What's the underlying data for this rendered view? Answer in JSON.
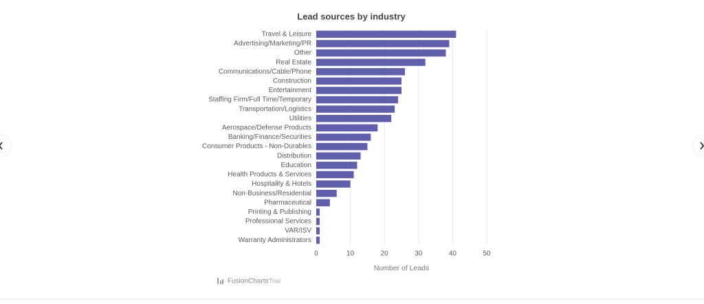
{
  "chart_data": {
    "type": "bar",
    "orientation": "horizontal",
    "title": "Lead sources by industry",
    "x_label": "Number of Leads",
    "categories": [
      "Travel & Leisure",
      "Advertising/Marketing/PR",
      "Other",
      "Real Estate",
      "Communications/Cable/Phone",
      "Construction",
      "Entertainment",
      "Staffing Firm/Full Time/Temporary",
      "Transportation/Logistics",
      "Utilities",
      "Aerospace/Defense Products",
      "Banking/Finance/Securities",
      "Consumer Products - Non-Durables",
      "Distribution",
      "Education",
      "Health Products & Services",
      "Hospitality & Hotels",
      "Non-Business/Residential",
      "Pharmaceutical",
      "Printing & Publishing",
      "Professional Services",
      "VAR/ISV",
      "Warranty Administrators"
    ],
    "values": [
      41,
      39,
      38,
      32,
      26,
      25,
      25,
      24,
      23,
      22,
      18,
      16,
      15,
      13,
      12,
      11,
      10,
      6,
      4,
      1,
      1,
      1,
      1
    ],
    "color": "#5f5fad",
    "xlim": [
      0,
      50
    ],
    "xticks": [
      0,
      10,
      20,
      30,
      40,
      50
    ],
    "grid": true
  },
  "watermark": {
    "brand": "FusionCharts",
    "note": "Trial"
  }
}
